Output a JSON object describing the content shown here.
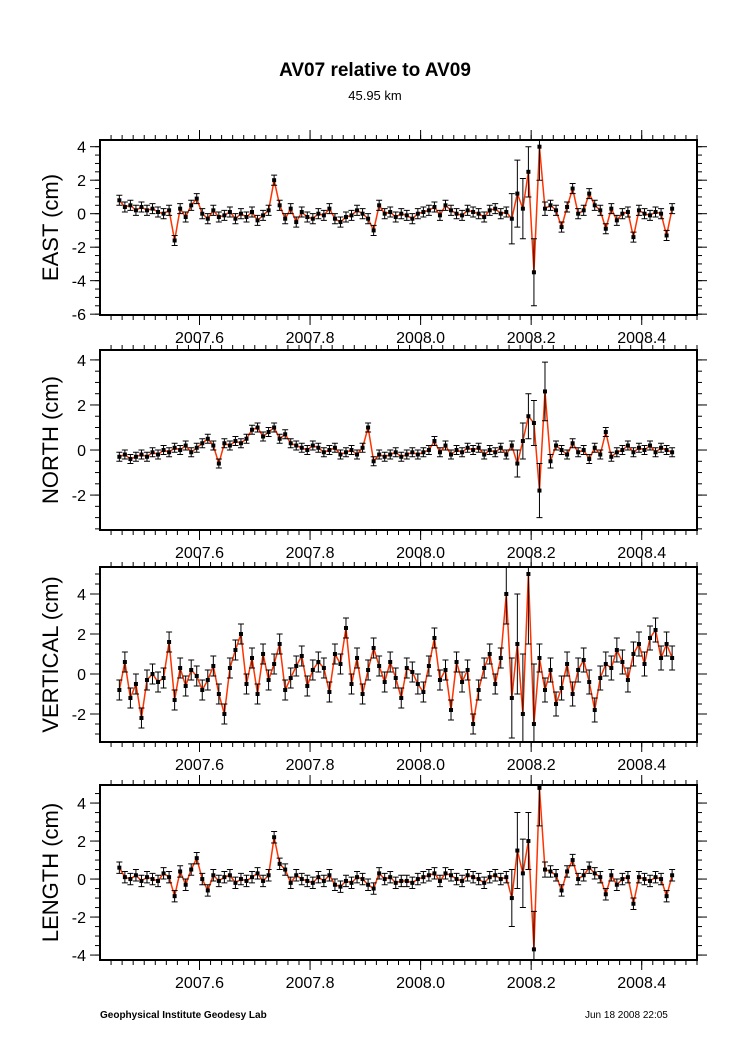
{
  "chart_data": [
    {
      "type": "line",
      "title": "AV07 relative to AV09",
      "subtitle": "45.95 km",
      "ylabel": "EAST (cm)",
      "xlim": [
        2007.42,
        2008.5
      ],
      "ylim": [
        -6.05,
        4.4
      ],
      "xticks": [
        2007.6,
        2007.8,
        2008.0,
        2008.2,
        2008.4
      ],
      "xtick_labels": [
        "2007.6",
        "2007.8",
        "2008.0",
        "2008.2",
        "2008.4"
      ],
      "yticks": [
        -6,
        -4,
        -2,
        0,
        2,
        4
      ],
      "ytick_labels": [
        "-6",
        "-4",
        "-2",
        "0",
        "2",
        "4"
      ],
      "x_start": 2007.455,
      "x_step": 0.01,
      "values": [
        0.8,
        0.4,
        0.5,
        0.2,
        0.4,
        0.2,
        0.3,
        0.1,
        0.0,
        0.2,
        -1.6,
        0.3,
        -0.2,
        0.5,
        0.9,
        0.0,
        -0.3,
        0.2,
        -0.2,
        -0.1,
        0.1,
        -0.3,
        0.0,
        -0.2,
        0.1,
        -0.4,
        -0.1,
        0.2,
        2.0,
        0.5,
        -0.3,
        0.3,
        -0.5,
        0.1,
        -0.2,
        -0.3,
        0.0,
        -0.1,
        0.3,
        -0.3,
        -0.5,
        -0.2,
        -0.1,
        0.2,
        0.0,
        -0.3,
        -1.0,
        0.5,
        0.0,
        0.1,
        -0.2,
        0.0,
        -0.1,
        -0.3,
        0.0,
        0.1,
        0.2,
        0.4,
        -0.1,
        0.5,
        0.2,
        0.0,
        -0.1,
        0.2,
        0.1,
        0.0,
        -0.2,
        0.2,
        0.3,
        0.0,
        0.1,
        -0.3,
        1.2,
        0.3,
        2.5,
        -3.5,
        4.0,
        0.3,
        0.5,
        0.2,
        -0.8,
        0.4,
        1.5,
        0.0,
        0.2,
        1.2,
        0.5,
        0.2,
        -0.9,
        0.3,
        -0.4,
        0.0,
        0.1,
        -1.4,
        0.2,
        0.0,
        -0.1,
        0.1,
        0.0,
        -1.3,
        0.3
      ],
      "errors": [
        0.3,
        0.3,
        0.3,
        0.3,
        0.3,
        0.3,
        0.3,
        0.3,
        0.3,
        0.3,
        0.3,
        0.3,
        0.3,
        0.3,
        0.3,
        0.3,
        0.3,
        0.3,
        0.3,
        0.3,
        0.3,
        0.3,
        0.3,
        0.3,
        0.3,
        0.3,
        0.3,
        0.3,
        0.3,
        0.3,
        0.3,
        0.3,
        0.3,
        0.3,
        0.3,
        0.3,
        0.3,
        0.3,
        0.3,
        0.3,
        0.3,
        0.3,
        0.3,
        0.3,
        0.3,
        0.3,
        0.3,
        0.3,
        0.3,
        0.3,
        0.3,
        0.3,
        0.3,
        0.3,
        0.3,
        0.3,
        0.3,
        0.3,
        0.3,
        0.3,
        0.3,
        0.3,
        0.3,
        0.3,
        0.3,
        0.3,
        0.3,
        0.3,
        0.3,
        0.3,
        0.3,
        1.5,
        2.0,
        1.8,
        1.5,
        2.0,
        2.0,
        0.4,
        0.3,
        0.3,
        0.3,
        0.3,
        0.3,
        0.3,
        0.3,
        0.3,
        0.3,
        0.3,
        0.3,
        0.3,
        0.3,
        0.3,
        0.3,
        0.3,
        0.3,
        0.3,
        0.3,
        0.3,
        0.3,
        0.3,
        0.3
      ]
    },
    {
      "type": "line",
      "ylabel": "NORTH (cm)",
      "xlim": [
        2007.42,
        2008.5
      ],
      "ylim": [
        -3.55,
        4.44
      ],
      "xticks": [
        2007.6,
        2007.8,
        2008.0,
        2008.2,
        2008.4
      ],
      "xtick_labels": [
        "2007.6",
        "2007.8",
        "2008.0",
        "2008.2",
        "2008.4"
      ],
      "yticks": [
        -2,
        0,
        2,
        4
      ],
      "ytick_labels": [
        "-2",
        "0",
        "2",
        "4"
      ],
      "x_start": 2007.455,
      "x_step": 0.01,
      "values": [
        -0.3,
        -0.2,
        -0.4,
        -0.3,
        -0.2,
        -0.3,
        -0.1,
        -0.2,
        0.0,
        -0.1,
        0.1,
        0.0,
        0.2,
        -0.1,
        0.1,
        0.3,
        0.5,
        0.2,
        -0.6,
        0.3,
        0.2,
        0.4,
        0.3,
        0.5,
        0.9,
        1.0,
        0.6,
        0.8,
        1.0,
        0.5,
        0.7,
        0.3,
        0.2,
        0.1,
        0.0,
        0.2,
        0.1,
        -0.1,
        0.0,
        0.1,
        -0.2,
        -0.1,
        0.0,
        -0.2,
        0.1,
        1.0,
        -0.5,
        -0.2,
        -0.3,
        -0.2,
        -0.1,
        -0.3,
        -0.2,
        -0.1,
        -0.2,
        -0.1,
        0.0,
        0.4,
        -0.1,
        0.2,
        -0.2,
        0.0,
        -0.1,
        0.1,
        0.0,
        0.1,
        -0.2,
        0.0,
        -0.1,
        0.1,
        -0.2,
        0.2,
        -0.6,
        0.4,
        1.5,
        1.2,
        -1.8,
        2.6,
        -0.5,
        0.2,
        0.0,
        -0.2,
        0.3,
        -0.1,
        0.0,
        -0.4,
        0.1,
        -0.2,
        0.8,
        -0.3,
        -0.1,
        0.0,
        0.2,
        -0.1,
        0.1,
        0.0,
        0.2,
        -0.1,
        0.1,
        0.0,
        -0.1
      ],
      "errors": [
        0.2,
        0.2,
        0.2,
        0.2,
        0.2,
        0.2,
        0.2,
        0.2,
        0.2,
        0.2,
        0.2,
        0.2,
        0.2,
        0.2,
        0.2,
        0.2,
        0.2,
        0.2,
        0.2,
        0.2,
        0.2,
        0.2,
        0.2,
        0.2,
        0.2,
        0.2,
        0.2,
        0.2,
        0.2,
        0.2,
        0.2,
        0.2,
        0.2,
        0.2,
        0.2,
        0.2,
        0.2,
        0.2,
        0.2,
        0.2,
        0.2,
        0.2,
        0.2,
        0.2,
        0.2,
        0.2,
        0.2,
        0.2,
        0.2,
        0.2,
        0.2,
        0.2,
        0.2,
        0.2,
        0.2,
        0.2,
        0.2,
        0.2,
        0.2,
        0.2,
        0.2,
        0.2,
        0.2,
        0.2,
        0.2,
        0.2,
        0.2,
        0.2,
        0.2,
        0.2,
        0.2,
        0.2,
        0.6,
        0.8,
        1.0,
        1.0,
        1.2,
        1.3,
        0.3,
        0.2,
        0.2,
        0.2,
        0.2,
        0.2,
        0.2,
        0.2,
        0.2,
        0.2,
        0.2,
        0.2,
        0.2,
        0.2,
        0.2,
        0.2,
        0.2,
        0.2,
        0.2,
        0.2,
        0.2,
        0.2,
        0.2
      ]
    },
    {
      "type": "line",
      "ylabel": "VERTICAL (cm)",
      "xlim": [
        2007.42,
        2008.5
      ],
      "ylim": [
        -3.4,
        5.35
      ],
      "xticks": [
        2007.6,
        2007.8,
        2008.0,
        2008.2,
        2008.4
      ],
      "xtick_labels": [
        "2007.6",
        "2007.8",
        "2008.0",
        "2008.2",
        "2008.4"
      ],
      "yticks": [
        -2,
        0,
        2,
        4
      ],
      "ytick_labels": [
        "-2",
        "0",
        "2",
        "4"
      ],
      "x_start": 2007.455,
      "x_step": 0.01,
      "values": [
        -0.8,
        0.6,
        -1.2,
        -0.5,
        -2.2,
        -0.3,
        0.0,
        -0.4,
        -0.2,
        1.6,
        -1.3,
        0.3,
        -0.6,
        0.2,
        -0.1,
        -0.8,
        -0.3,
        0.4,
        -1.0,
        -2.0,
        0.3,
        1.2,
        2.0,
        -0.5,
        0.8,
        -1.0,
        1.0,
        -0.3,
        0.5,
        1.5,
        -0.8,
        -0.2,
        0.4,
        0.9,
        -0.6,
        0.2,
        0.6,
        0.3,
        -0.9,
        1.0,
        0.5,
        2.3,
        -0.5,
        0.8,
        -1.0,
        0.2,
        1.3,
        0.4,
        -0.4,
        0.6,
        -0.2,
        -1.2,
        0.3,
        0.1,
        -0.5,
        -0.9,
        0.4,
        1.8,
        -0.3,
        0.2,
        -1.8,
        0.6,
        -0.4,
        0.2,
        -2.5,
        -0.8,
        0.3,
        1.0,
        -0.5,
        0.8,
        4.0,
        -1.2,
        1.5,
        -2.0,
        5.0,
        -2.5,
        0.8,
        -0.8,
        0.2,
        -1.5,
        -0.7,
        0.5,
        -1.0,
        0.2,
        0.7,
        -0.4,
        -1.8,
        -0.2,
        0.5,
        0.3,
        1.2,
        0.6,
        -0.3,
        1.0,
        1.5,
        0.5,
        1.8,
        2.2,
        0.8,
        1.5,
        0.8
      ],
      "errors": [
        0.5,
        0.5,
        0.5,
        0.5,
        0.5,
        0.5,
        0.5,
        0.5,
        0.5,
        0.5,
        0.5,
        0.5,
        0.5,
        0.5,
        0.5,
        0.5,
        0.5,
        0.5,
        0.5,
        0.5,
        0.5,
        0.5,
        0.5,
        0.5,
        0.5,
        0.5,
        0.5,
        0.5,
        0.5,
        0.5,
        0.5,
        0.5,
        0.5,
        0.5,
        0.5,
        0.5,
        0.5,
        0.5,
        0.5,
        0.5,
        0.5,
        0.5,
        0.5,
        0.5,
        0.5,
        0.5,
        0.5,
        0.5,
        0.5,
        0.5,
        0.5,
        0.5,
        0.5,
        0.5,
        0.5,
        0.5,
        0.5,
        0.5,
        0.5,
        0.5,
        0.5,
        0.5,
        0.5,
        0.5,
        0.5,
        0.5,
        0.5,
        0.5,
        0.5,
        0.5,
        1.5,
        2.0,
        2.5,
        3.0,
        3.5,
        3.0,
        0.7,
        0.6,
        0.6,
        0.6,
        0.6,
        0.6,
        0.6,
        0.6,
        0.6,
        0.6,
        0.6,
        0.6,
        0.6,
        0.6,
        0.6,
        0.6,
        0.6,
        0.6,
        0.6,
        0.6,
        0.6,
        0.6,
        0.6,
        0.6,
        0.6
      ]
    },
    {
      "type": "line",
      "ylabel": "LENGTH (cm)",
      "xlim": [
        2007.42,
        2008.5
      ],
      "ylim": [
        -4.26,
        4.95
      ],
      "xticks": [
        2007.6,
        2007.8,
        2008.0,
        2008.2,
        2008.4
      ],
      "xtick_labels": [
        "2007.6",
        "2007.8",
        "2008.0",
        "2008.2",
        "2008.4"
      ],
      "yticks": [
        -4,
        -2,
        0,
        2,
        4
      ],
      "ytick_labels": [
        "-4",
        "-2",
        "0",
        "2",
        "4"
      ],
      "x_start": 2007.455,
      "x_step": 0.01,
      "values": [
        0.6,
        0.1,
        0.0,
        0.2,
        -0.1,
        0.1,
        0.0,
        -0.1,
        0.3,
        0.1,
        -0.9,
        0.4,
        -0.3,
        0.5,
        1.1,
        0.0,
        -0.6,
        0.2,
        -0.1,
        0.1,
        0.2,
        -0.2,
        0.0,
        -0.1,
        0.1,
        0.3,
        -0.1,
        0.2,
        2.2,
        0.8,
        0.5,
        -0.2,
        0.2,
        0.0,
        -0.1,
        -0.2,
        0.1,
        -0.1,
        0.2,
        -0.3,
        -0.4,
        -0.1,
        -0.2,
        0.1,
        0.0,
        -0.3,
        -0.5,
        0.3,
        0.0,
        0.1,
        -0.2,
        -0.1,
        -0.1,
        -0.2,
        0.0,
        0.1,
        0.2,
        0.3,
        -0.1,
        0.3,
        0.2,
        0.0,
        -0.1,
        0.2,
        0.1,
        0.0,
        -0.2,
        0.1,
        0.2,
        0.0,
        0.1,
        -1.0,
        1.5,
        0.3,
        2.0,
        -3.7,
        4.8,
        0.5,
        0.4,
        0.2,
        -0.6,
        0.4,
        1.0,
        0.0,
        0.2,
        0.6,
        0.3,
        0.1,
        -0.8,
        0.2,
        -0.3,
        0.0,
        0.1,
        -1.3,
        0.1,
        0.0,
        -0.1,
        0.1,
        0.0,
        -0.9,
        0.2
      ],
      "errors": [
        0.3,
        0.3,
        0.3,
        0.3,
        0.3,
        0.3,
        0.3,
        0.3,
        0.3,
        0.3,
        0.3,
        0.3,
        0.3,
        0.3,
        0.3,
        0.3,
        0.3,
        0.3,
        0.3,
        0.3,
        0.3,
        0.3,
        0.3,
        0.3,
        0.3,
        0.3,
        0.3,
        0.3,
        0.3,
        0.3,
        0.3,
        0.3,
        0.3,
        0.3,
        0.3,
        0.3,
        0.3,
        0.3,
        0.3,
        0.3,
        0.3,
        0.3,
        0.3,
        0.3,
        0.3,
        0.3,
        0.3,
        0.3,
        0.3,
        0.3,
        0.3,
        0.3,
        0.3,
        0.3,
        0.3,
        0.3,
        0.3,
        0.3,
        0.3,
        0.3,
        0.3,
        0.3,
        0.3,
        0.3,
        0.3,
        0.3,
        0.3,
        0.3,
        0.3,
        0.3,
        0.3,
        1.5,
        2.0,
        1.8,
        1.5,
        2.0,
        2.0,
        0.4,
        0.3,
        0.3,
        0.3,
        0.3,
        0.3,
        0.3,
        0.3,
        0.3,
        0.3,
        0.3,
        0.3,
        0.3,
        0.3,
        0.3,
        0.3,
        0.3,
        0.3,
        0.3,
        0.3,
        0.3,
        0.3,
        0.3,
        0.3
      ]
    }
  ],
  "colors": {
    "line": "#ff3300",
    "points": "#000000"
  },
  "footer": {
    "left": "Geophysical Institute Geodesy Lab",
    "right": "Jun 18 2008 22:05"
  }
}
